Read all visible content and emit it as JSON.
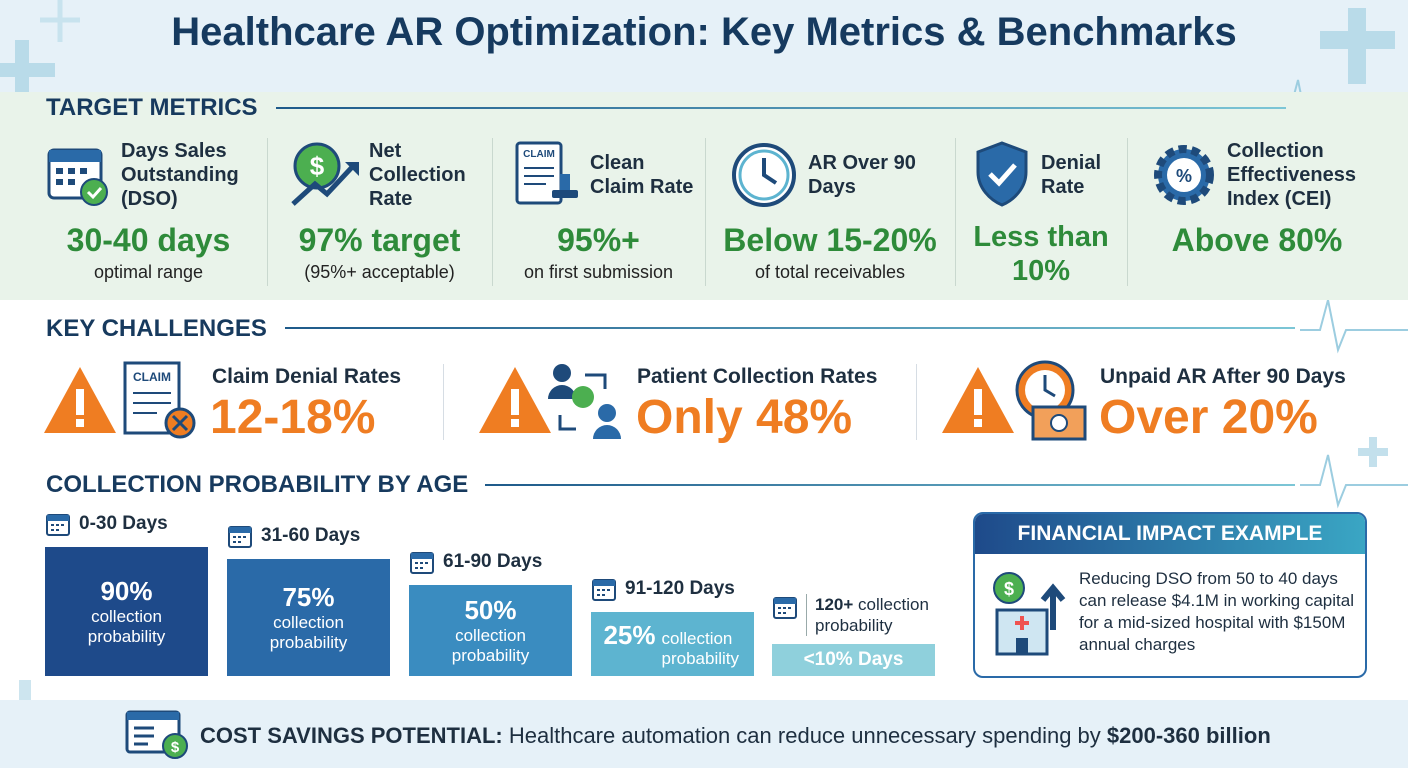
{
  "title": "Healthcare AR Optimization: Key Metrics & Benchmarks",
  "target_metrics": {
    "heading": "TARGET METRICS",
    "items": [
      {
        "label": "Days Sales Outstanding (DSO)",
        "value": "30-40 days",
        "note": "optimal range"
      },
      {
        "label": "Net Collection Rate",
        "value": "97% target",
        "note": "(95%+ acceptable)"
      },
      {
        "label": "Clean Claim Rate",
        "value": "95%+",
        "note": "on first submission"
      },
      {
        "label": "AR Over 90 Days",
        "value": "Below 15-20%",
        "note": "of total receivables"
      },
      {
        "label": "Denial Rate",
        "value": "Less than 10%"
      },
      {
        "label": "Collection Effectiveness Index (CEI)",
        "value": "Above 80%"
      }
    ]
  },
  "key_challenges": {
    "heading": "KEY CHALLENGES",
    "items": [
      {
        "label": "Claim Denial Rates",
        "value": "12-18%"
      },
      {
        "label": "Patient Collection Rates",
        "value": "Only 48%"
      },
      {
        "label": "Unpaid AR After 90 Days",
        "value": "Over 20%"
      }
    ]
  },
  "collection_probability": {
    "heading": "COLLECTION PROBABILITY BY AGE",
    "bars": [
      {
        "label": "0-30 Days",
        "value": "90%",
        "note": "collection probability"
      },
      {
        "label": "31-60 Days",
        "value": "75%",
        "note": "collection probability"
      },
      {
        "label": "61-90 Days",
        "value": "50%",
        "note": "collection probability"
      },
      {
        "label": "91-120 Days",
        "value": "25%",
        "note": "collection probability"
      },
      {
        "label": "120+",
        "note": "collection probability",
        "value": "<10%",
        "suffix": "Days"
      }
    ]
  },
  "financial_impact": {
    "heading": "FINANCIAL IMPACT EXAMPLE",
    "text": "Reducing DSO from 50 to 40 days can release $4.1M in working capital for a mid-sized hospital with $150M annual charges"
  },
  "cost_savings": {
    "label": "COST SAVINGS POTENTIAL:",
    "text": "Healthcare automation can reduce unnecessary spending by",
    "amount": "$200-360 billion"
  }
}
